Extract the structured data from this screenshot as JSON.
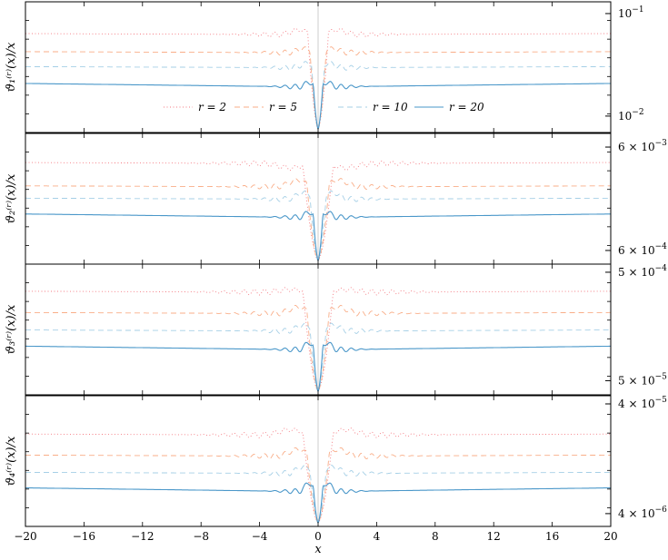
{
  "chart_data": [
    {
      "type": "line",
      "panel": 1,
      "ylabel": "ϑ₁⁽ʳ⁾(x)/x",
      "yscale": "log",
      "ylim": [
        0.0075,
        0.12
      ],
      "xlim": [
        -20,
        20
      ],
      "y_tick_labels": [
        "10^{-1}",
        "10^{-2}"
      ],
      "y_tick_values": [
        0.1,
        0.01
      ],
      "legend": {
        "placement": "bottom-center",
        "entries": [
          "r = 2",
          "r = 5",
          "r = 10",
          "r = 20"
        ]
      },
      "series": [
        {
          "name": "r = 2",
          "plateau": 0.063,
          "peak": 0.07,
          "peak_x": 1.3,
          "min": 0.0075
        },
        {
          "name": "r = 5",
          "plateau": 0.042,
          "peak": 0.046,
          "peak_x": 1.0,
          "min": 0.0075
        },
        {
          "name": "r = 10",
          "plateau": 0.03,
          "peak": 0.033,
          "peak_x": 0.8,
          "min": 0.0075
        },
        {
          "name": "r = 20",
          "plateau": 0.02,
          "peak": 0.022,
          "peak_x": 0.6,
          "min": 0.0075
        }
      ]
    },
    {
      "type": "line",
      "panel": 2,
      "ylabel": "ϑ₂⁽ʳ⁾(x)/x",
      "yscale": "log",
      "ylim": [
        0.00048,
        0.0075
      ],
      "xlim": [
        -20,
        20
      ],
      "y_tick_labels": [
        "6 × 10^{-3}",
        "6 × 10^{-4}"
      ],
      "y_tick_values": [
        0.006,
        0.0006
      ],
      "series": [
        {
          "name": "r = 2",
          "plateau": 0.0042,
          "peak": 0.0038,
          "peak_x": 1.9,
          "min": 0.00048
        },
        {
          "name": "r = 5",
          "plateau": 0.0025,
          "peak": 0.0029,
          "peak_x": 1.4,
          "min": 0.00048
        },
        {
          "name": "r = 10",
          "plateau": 0.0019,
          "peak": 0.0022,
          "peak_x": 1.0,
          "min": 0.00048
        },
        {
          "name": "r = 20",
          "plateau": 0.0013,
          "peak": 0.00145,
          "peak_x": 0.6,
          "min": 0.00048
        }
      ]
    },
    {
      "type": "line",
      "panel": 3,
      "ylabel": "ϑ₃⁽ʳ⁾(x)/x",
      "yscale": "log",
      "ylim": [
        4e-05,
        0.00055
      ],
      "xlim": [
        -20,
        20
      ],
      "y_tick_labels": [
        "5 × 10^{-4}",
        "5 × 10^{-5}"
      ],
      "y_tick_values": [
        0.0005,
        5e-05
      ],
      "series": [
        {
          "name": "r = 2",
          "plateau": 0.00033,
          "peak": 0.00035,
          "peak_x": 1.9,
          "min": 4e-05
        },
        {
          "name": "r = 5",
          "plateau": 0.00021,
          "peak": 0.00024,
          "peak_x": 1.4,
          "min": 4e-05
        },
        {
          "name": "r = 10",
          "plateau": 0.000145,
          "peak": 0.000165,
          "peak_x": 1.0,
          "min": 4e-05
        },
        {
          "name": "r = 20",
          "plateau": 0.0001,
          "peak": 0.000115,
          "peak_x": 0.6,
          "min": 4e-05
        }
      ]
    },
    {
      "type": "line",
      "panel": 4,
      "ylabel": "ϑ₄⁽ʳ⁾(x)/x",
      "yscale": "log",
      "ylim": [
        3.3e-06,
        4.4e-05
      ],
      "xlim": [
        -20,
        20
      ],
      "y_tick_labels": [
        "4 × 10^{-5}",
        "4 × 10^{-6}"
      ],
      "y_tick_values": [
        4e-05,
        4e-06
      ],
      "x_tick_labels": [
        "−20",
        "−16",
        "−12",
        "−8",
        "−4",
        "0",
        "4",
        "8",
        "12",
        "16",
        "20"
      ],
      "x_tick_values": [
        -20,
        -16,
        -12,
        -8,
        -4,
        0,
        4,
        8,
        12,
        16,
        20
      ],
      "xlabel": "x",
      "series": [
        {
          "name": "r = 2",
          "plateau": 2.1e-05,
          "peak": 2.35e-05,
          "peak_x": 1.9,
          "min": 3.3e-06
        },
        {
          "name": "r = 5",
          "plateau": 1.35e-05,
          "peak": 1.55e-05,
          "peak_x": 1.4,
          "min": 3.3e-06
        },
        {
          "name": "r = 10",
          "plateau": 9.4e-06,
          "peak": 1.08e-05,
          "peak_x": 1.0,
          "min": 3.3e-06
        },
        {
          "name": "r = 20",
          "plateau": 6.6e-06,
          "peak": 7.8e-06,
          "peak_x": 0.6,
          "min": 3.3e-06
        }
      ]
    }
  ],
  "colors": {
    "r2": "#f4777f",
    "r5": "#f9ad87",
    "r10": "#a5cfe6",
    "r20": "#4a97c9",
    "center_line": "#cccccc"
  },
  "series_dash": {
    "r = 2": "1,2.5",
    "r = 5": "6,4",
    "r = 10": "6,4",
    "r = 20": ""
  }
}
